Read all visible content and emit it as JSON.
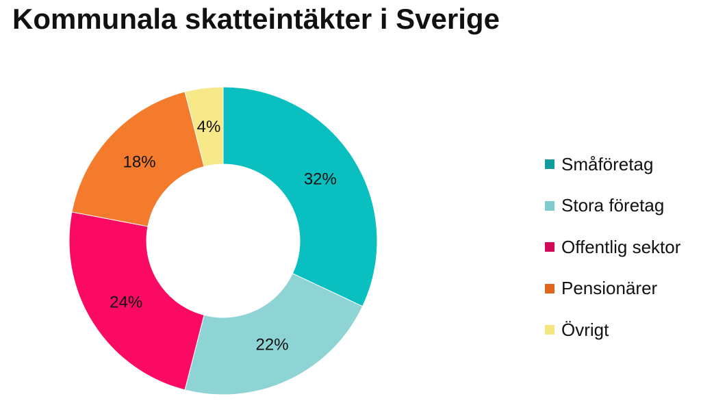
{
  "chart_data": {
    "type": "pie",
    "subtype": "donut",
    "title": "Kommunala skatteintäkter i Sverige",
    "legend_position": "right",
    "slices": [
      {
        "label": "Småföretag",
        "value": 32,
        "display": "32%",
        "color": "#0abfbf",
        "legend_color": "#0e9c9c"
      },
      {
        "label": "Stora företag",
        "value": 22,
        "display": "22%",
        "color": "#8fd4d4",
        "legend_color": "#7fcaca"
      },
      {
        "label": "Offentlig sektor",
        "value": 24,
        "display": "24%",
        "color": "#fb0a64",
        "legend_color": "#d10a57"
      },
      {
        "label": "Pensionärer",
        "value": 18,
        "display": "18%",
        "color": "#f47b2c",
        "legend_color": "#e0661c"
      },
      {
        "label": "Övrigt",
        "value": 4,
        "display": "4%",
        "color": "#f7e98a",
        "legend_color": "#f4e580"
      }
    ]
  }
}
